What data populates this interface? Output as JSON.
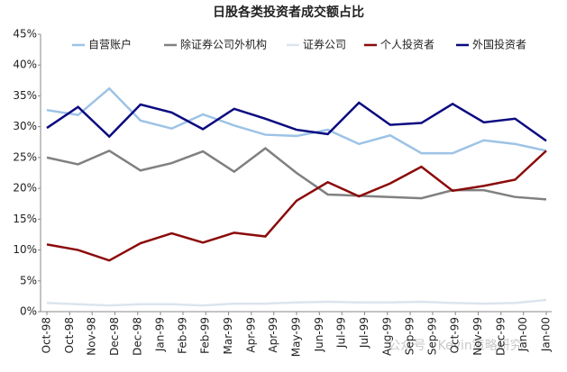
{
  "chart_data": {
    "type": "line",
    "title": "日股各类投资者成交额占比",
    "x": [
      0,
      1,
      2,
      3,
      4,
      5,
      6,
      7,
      8,
      9,
      10,
      11,
      12,
      13,
      14,
      15,
      16
    ],
    "xlim": [
      0,
      16
    ],
    "xticks": [
      {
        "value": 0,
        "label": "Oct-98"
      },
      {
        "value": 0.73,
        "label": "Oct-98"
      },
      {
        "value": 1.45,
        "label": "Nov-98"
      },
      {
        "value": 2.18,
        "label": "Dec-98"
      },
      {
        "value": 2.91,
        "label": "Dec-98"
      },
      {
        "value": 3.64,
        "label": "Jan-99"
      },
      {
        "value": 4.36,
        "label": "Feb-99"
      },
      {
        "value": 5.09,
        "label": "Feb-99"
      },
      {
        "value": 5.82,
        "label": "Mar-99"
      },
      {
        "value": 6.55,
        "label": "Apr-99"
      },
      {
        "value": 7.27,
        "label": "Apr-99"
      },
      {
        "value": 8,
        "label": "May-99"
      },
      {
        "value": 8.73,
        "label": "Jun-99"
      },
      {
        "value": 9.45,
        "label": "Jul-99"
      },
      {
        "value": 10.18,
        "label": "Jul-99"
      },
      {
        "value": 10.91,
        "label": "Aug-99"
      },
      {
        "value": 11.64,
        "label": "Sep-99"
      },
      {
        "value": 12.36,
        "label": "Sep-99"
      },
      {
        "value": 13.09,
        "label": "Oct-99"
      },
      {
        "value": 13.82,
        "label": "Nov-99"
      },
      {
        "value": 14.55,
        "label": "Dec-99"
      },
      {
        "value": 15.27,
        "label": "Jan-00"
      },
      {
        "value": 16,
        "label": "Jan-00"
      }
    ],
    "ylim": [
      0,
      45
    ],
    "yticks": [
      {
        "value": 0,
        "label": "0%"
      },
      {
        "value": 5,
        "label": "5%"
      },
      {
        "value": 10,
        "label": "10%"
      },
      {
        "value": 15,
        "label": "15%"
      },
      {
        "value": 20,
        "label": "20%"
      },
      {
        "value": 25,
        "label": "25%"
      },
      {
        "value": 30,
        "label": "30%"
      },
      {
        "value": 35,
        "label": "35%"
      },
      {
        "value": 40,
        "label": "40%"
      },
      {
        "value": 45,
        "label": "45%"
      }
    ],
    "series": [
      {
        "name": "自营账户",
        "color": "#9dc3e6",
        "values": [
          32.7,
          31.9,
          36.2,
          31.0,
          29.7,
          32.0,
          30.2,
          28.7,
          28.5,
          29.5,
          27.2,
          28.6,
          25.7,
          25.7,
          27.8,
          27.2,
          26.1
        ]
      },
      {
        "name": "除证券公司外机构",
        "color": "#808080",
        "values": [
          25.0,
          23.9,
          26.1,
          22.9,
          24.1,
          26.0,
          22.7,
          26.5,
          22.5,
          19.0,
          18.8,
          18.6,
          18.4,
          19.7,
          19.7,
          18.6,
          18.2
        ]
      },
      {
        "name": "证券公司",
        "color": "#dce4ee",
        "values": [
          1.4,
          1.2,
          1.0,
          1.2,
          1.2,
          1.0,
          1.3,
          1.3,
          1.5,
          1.6,
          1.5,
          1.5,
          1.6,
          1.4,
          1.3,
          1.4,
          1.9
        ]
      },
      {
        "name": "个人投资者",
        "color": "#8b0a0a",
        "values": [
          10.9,
          10.0,
          8.3,
          11.1,
          12.7,
          11.2,
          12.8,
          12.2,
          18.0,
          21.0,
          18.7,
          20.8,
          23.5,
          19.6,
          20.4,
          21.4,
          26.1
        ]
      },
      {
        "name": "外国投资者",
        "color": "#0a0a80",
        "values": [
          29.8,
          33.2,
          28.4,
          33.6,
          32.3,
          29.6,
          32.9,
          31.3,
          29.5,
          28.8,
          33.9,
          30.3,
          30.6,
          33.7,
          30.7,
          31.3,
          27.7
        ]
      }
    ],
    "legend": "top",
    "watermark": "公众号 · Kevin策略研究"
  }
}
